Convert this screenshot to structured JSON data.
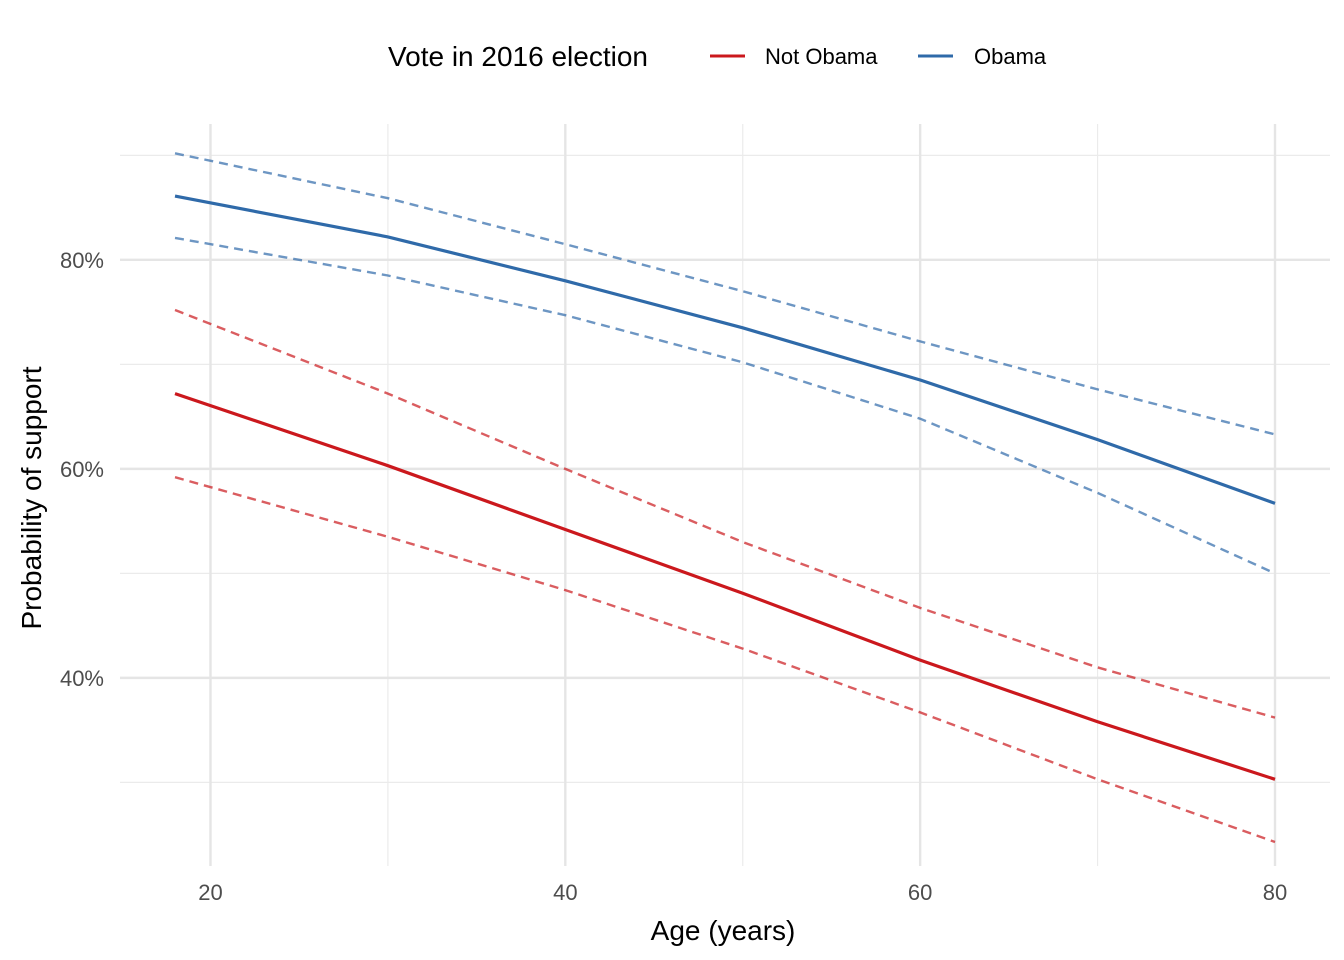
{
  "chart_data": {
    "type": "line",
    "xlabel": "Age (years)",
    "ylabel": "Probability of support",
    "xlim": [
      14.9,
      83.1
    ],
    "ylim": [
      0.22,
      0.93
    ],
    "x_ticks": [
      20,
      40,
      60,
      80
    ],
    "x_tick_labels": [
      "20",
      "40",
      "60",
      "80"
    ],
    "y_ticks": [
      0.4,
      0.6,
      0.8
    ],
    "y_tick_labels": [
      "40%",
      "60%",
      "80%"
    ],
    "x_minor_ticks": [
      30,
      50,
      70
    ],
    "y_minor_ticks": [
      0.3,
      0.5,
      0.7,
      0.9
    ],
    "grid": true,
    "legend": {
      "title": "Vote in 2016 election",
      "placement": "top",
      "entries": [
        "Not Obama",
        "Obama"
      ]
    },
    "series": [
      {
        "name": "Not Obama",
        "color": "#CB181D",
        "x": [
          18,
          30,
          40,
          50,
          60,
          70,
          80
        ],
        "y": [
          0.672,
          0.603,
          0.542,
          0.481,
          0.417,
          0.358,
          0.303
        ],
        "lower": [
          0.592,
          0.535,
          0.484,
          0.428,
          0.367,
          0.303,
          0.243
        ],
        "upper": [
          0.752,
          0.672,
          0.6,
          0.53,
          0.467,
          0.41,
          0.362
        ]
      },
      {
        "name": "Obama",
        "color": "#2F6AA9",
        "x": [
          18,
          30,
          40,
          50,
          60,
          70,
          80
        ],
        "y": [
          0.861,
          0.822,
          0.78,
          0.735,
          0.685,
          0.628,
          0.567
        ],
        "lower": [
          0.821,
          0.785,
          0.747,
          0.702,
          0.648,
          0.577,
          0.5
        ],
        "upper": [
          0.902,
          0.859,
          0.815,
          0.77,
          0.722,
          0.676,
          0.633
        ]
      }
    ]
  }
}
